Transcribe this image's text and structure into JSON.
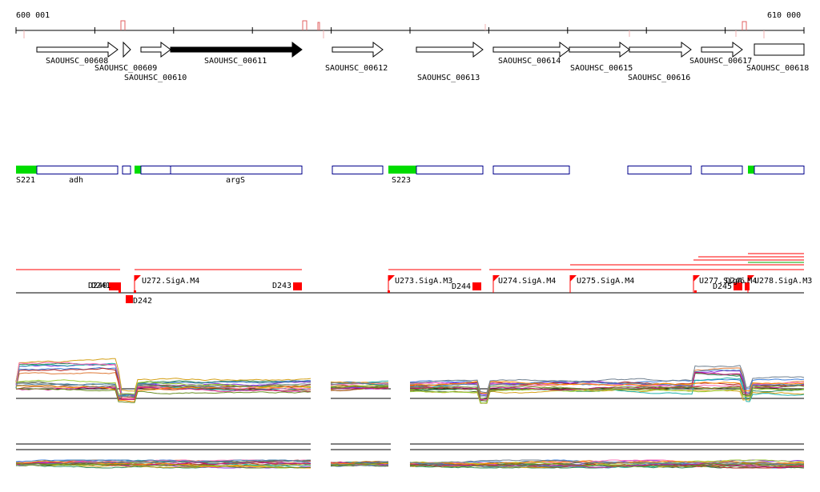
{
  "ruler": {
    "start_label": "600 001",
    "end_label": "610 000"
  },
  "genes": [
    {
      "label": "SAOUHSC_00608",
      "highlight": false
    },
    {
      "label": "SAOUHSC_00609",
      "highlight": false
    },
    {
      "label": "SAOUHSC_00610",
      "highlight": false
    },
    {
      "label": "SAOUHSC_00611",
      "highlight": true
    },
    {
      "label": "SAOUHSC_00612",
      "highlight": false
    },
    {
      "label": "SAOUHSC_00613",
      "highlight": false
    },
    {
      "label": "SAOUHSC_00614",
      "highlight": false
    },
    {
      "label": "SAOUHSC_00615",
      "highlight": false
    },
    {
      "label": "SAOUHSC_00616",
      "highlight": false
    },
    {
      "label": "SAOUHSC_00617",
      "highlight": false
    },
    {
      "label": "SAOUHSC_00618",
      "highlight": false
    }
  ],
  "operons": {
    "labels": [
      "S221",
      "adh",
      "argS",
      "S223"
    ]
  },
  "regulatory": {
    "u_labels": [
      "U272.SigA.M4",
      "U273.SigA.M3",
      "U274.SigA.M4",
      "U275.SigA.M4",
      "U277.SigA.M4",
      "U278.SigA.M3"
    ],
    "d_labels": [
      "D240",
      "D241",
      "D242",
      "D243",
      "D244",
      "D245",
      "D246"
    ]
  },
  "colors": {
    "gene_highlight": "#000000",
    "operon_border": "#00008b",
    "operon_start": "#00dd00",
    "regulator": "#ff0000"
  }
}
